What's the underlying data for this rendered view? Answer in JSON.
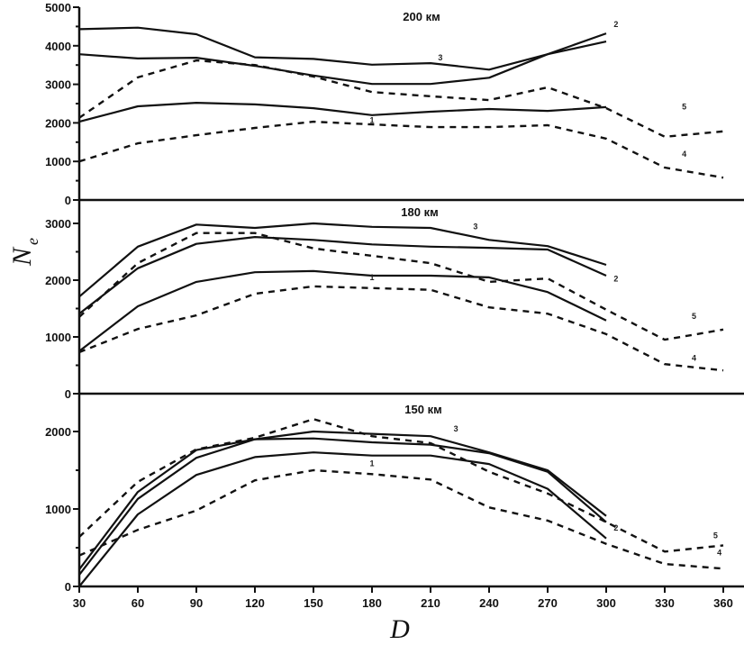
{
  "chart_data": {
    "type": "line",
    "xlabel": "D",
    "ylabel": "N",
    "ylabel_subscript": "e",
    "x_ticks": [
      30,
      60,
      90,
      120,
      150,
      180,
      210,
      240,
      270,
      300,
      330,
      360
    ],
    "xlim": [
      30,
      360
    ],
    "grid": false,
    "panels": [
      {
        "title": "200 км",
        "ylim": [
          0,
          5000
        ],
        "y_ticks": [
          0,
          1000,
          2000,
          3000,
          4000,
          5000
        ],
        "series": [
          {
            "name": "3",
            "style": "solid",
            "x": [
              30,
              60,
              90,
              120,
              150,
              180,
              210,
              240,
              270,
              300
            ],
            "values": [
              4430,
              4470,
              4300,
              3700,
              3660,
              3510,
              3550,
              3380,
              3780,
              4110
            ],
            "label_at": [
              215,
              3620
            ]
          },
          {
            "name": "2",
            "style": "solid",
            "x": [
              30,
              60,
              90,
              120,
              150,
              180,
              210,
              240,
              270,
              300
            ],
            "values": [
              3780,
              3670,
              3690,
              3480,
              3230,
              3010,
              3010,
              3170,
              3780,
              4320
            ],
            "label_at": [
              305,
              4490
            ]
          },
          {
            "name": "1",
            "style": "solid",
            "x": [
              30,
              60,
              90,
              120,
              150,
              180,
              210,
              240,
              270,
              300
            ],
            "values": [
              2030,
              2430,
              2520,
              2480,
              2380,
              2200,
              2290,
              2360,
              2310,
              2410
            ],
            "label_at": [
              180,
              2000
            ]
          },
          {
            "name": "5",
            "style": "dashed",
            "x": [
              30,
              60,
              90,
              120,
              150,
              180,
              210,
              240,
              270,
              300,
              330,
              360
            ],
            "values": [
              2130,
              3180,
              3620,
              3500,
              3200,
              2800,
              2690,
              2590,
              2920,
              2380,
              1640,
              1780
            ],
            "label_at": [
              340,
              2350
            ]
          },
          {
            "name": "4",
            "style": "dashed",
            "x": [
              30,
              60,
              90,
              120,
              150,
              180,
              210,
              240,
              270,
              300,
              330,
              360
            ],
            "values": [
              1000,
              1470,
              1680,
              1870,
              2030,
              1960,
              1890,
              1890,
              1940,
              1590,
              840,
              580
            ],
            "label_at": [
              340,
              1120
            ]
          }
        ]
      },
      {
        "title": "180 км",
        "ylim": [
          0,
          3000
        ],
        "y_ticks": [
          0,
          1000,
          2000,
          3000
        ],
        "series": [
          {
            "name": "3",
            "style": "solid",
            "x": [
              30,
              60,
              90,
              120,
              150,
              180,
              210,
              240,
              270,
              300
            ],
            "values": [
              1710,
              2590,
              2980,
              2920,
              3000,
              2940,
              2920,
              2710,
              2600,
              2270
            ],
            "label_at": [
              233,
              2900
            ]
          },
          {
            "name": "2",
            "style": "solid",
            "x": [
              30,
              60,
              90,
              120,
              150,
              180,
              210,
              240,
              270,
              300
            ],
            "values": [
              1410,
              2210,
              2640,
              2760,
              2710,
              2630,
              2590,
              2570,
              2540,
              2080
            ],
            "label_at": [
              305,
              1980
            ]
          },
          {
            "name": "1",
            "style": "solid",
            "x": [
              30,
              60,
              90,
              120,
              150,
              180,
              210,
              240,
              270,
              300
            ],
            "values": [
              750,
              1540,
              1970,
              2140,
              2160,
              2080,
              2080,
              2050,
              1790,
              1290
            ],
            "label_at": [
              180,
              2000
            ]
          },
          {
            "name": "5",
            "style": "dashed",
            "x": [
              30,
              60,
              90,
              120,
              150,
              180,
              210,
              240,
              270,
              300,
              330,
              360
            ],
            "values": [
              1350,
              2300,
              2830,
              2830,
              2560,
              2430,
              2300,
              1970,
              2030,
              1480,
              950,
              1130
            ],
            "label_at": [
              345,
              1320
            ]
          },
          {
            "name": "4",
            "style": "dashed",
            "x": [
              30,
              60,
              90,
              120,
              150,
              180,
              210,
              240,
              270,
              300,
              330,
              360
            ],
            "values": [
              730,
              1140,
              1380,
              1760,
              1890,
              1860,
              1830,
              1520,
              1410,
              1050,
              520,
              410
            ],
            "label_at": [
              345,
              580
            ]
          }
        ]
      },
      {
        "title": "150 км",
        "ylim": [
          0,
          2450
        ],
        "y_ticks": [
          0,
          1000,
          2000
        ],
        "series": [
          {
            "name": "3",
            "style": "solid",
            "x": [
              30,
              60,
              90,
              120,
              150,
              180,
              210,
              240,
              270,
              300
            ],
            "values": [
              220,
              1220,
              1760,
              1900,
              2000,
              1970,
              1940,
              1730,
              1500,
              910
            ],
            "label_at": [
              223,
              2000
            ]
          },
          {
            "name": "2",
            "style": "solid",
            "x": [
              30,
              60,
              90,
              120,
              150,
              180,
              210,
              240,
              270,
              300
            ],
            "values": [
              150,
              1130,
              1660,
              1900,
              1910,
              1860,
              1830,
              1720,
              1480,
              830
            ],
            "label_at": [
              305,
              720
            ]
          },
          {
            "name": "1",
            "style": "solid",
            "x": [
              30,
              60,
              90,
              120,
              150,
              180,
              210,
              240,
              270,
              300
            ],
            "values": [
              0,
              930,
              1440,
              1670,
              1730,
              1690,
              1690,
              1580,
              1260,
              620
            ],
            "label_at": [
              180,
              1550
            ]
          },
          {
            "name": "5",
            "style": "dashed",
            "x": [
              30,
              60,
              90,
              120,
              150,
              180,
              210,
              240,
              270,
              300,
              330,
              360
            ],
            "values": [
              640,
              1350,
              1770,
              1920,
              2160,
              1940,
              1850,
              1480,
              1200,
              830,
              450,
              530
            ],
            "label_at": [
              356,
              620
            ]
          },
          {
            "name": "4",
            "style": "dashed",
            "x": [
              30,
              60,
              90,
              120,
              150,
              180,
              210,
              240,
              270,
              300,
              330,
              360
            ],
            "values": [
              400,
              730,
              980,
              1370,
              1500,
              1450,
              1380,
              1020,
              850,
              550,
              290,
              230
            ],
            "label_at": [
              358,
              400
            ]
          }
        ]
      }
    ]
  }
}
